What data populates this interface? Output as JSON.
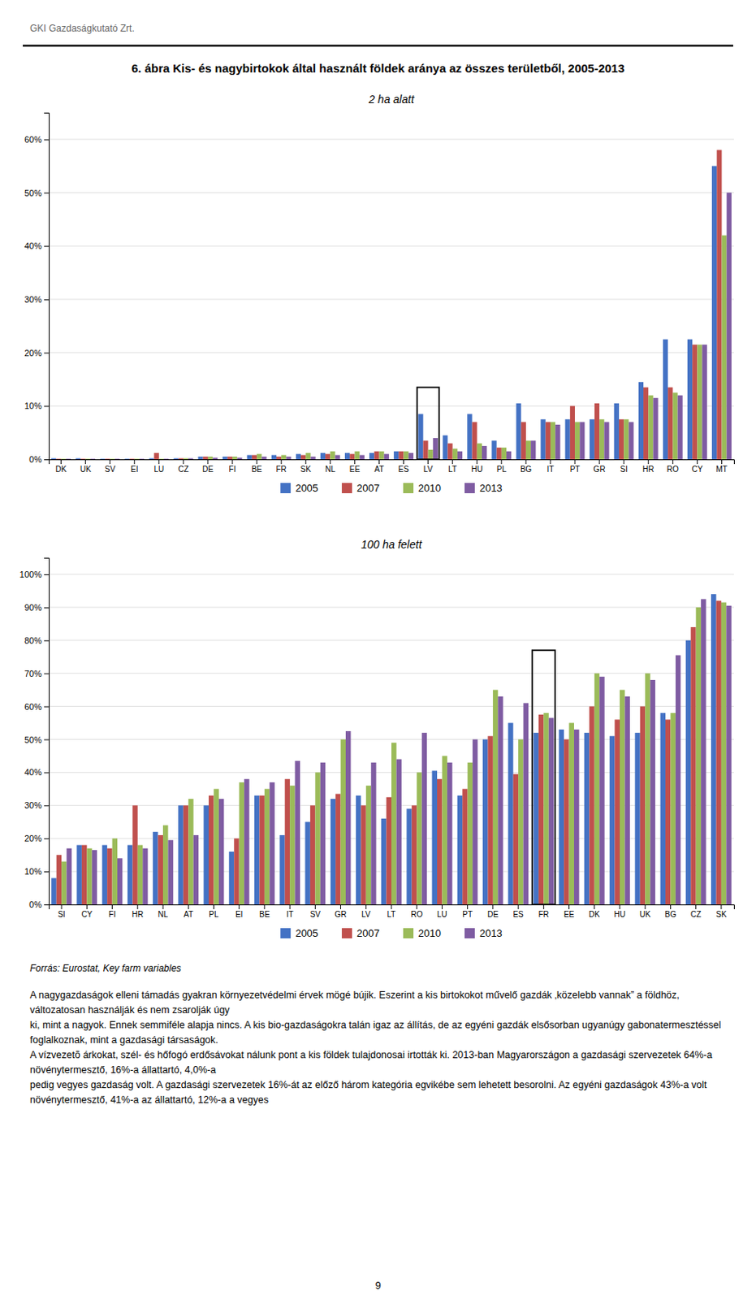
{
  "header_text": "GKI Gazdaságkutató Zrt.",
  "title": "6. ábra Kis- és nagybirtokok által használt földek aránya az összes területből, 2005-2013",
  "source_text": "Forrás: Eurostat, Key farm variables",
  "body_text": [
    "A nagygazdaságok elleni támadás gyakran környezetvédelmi érvek mögé bújik. Eszerint a kis birtokokot művelő gazdák ‚közelebb vannak” a földhöz, változatosan használják és nem zsarolják úgy",
    "ki, mint a nagyok. Ennek semmiféle alapja nincs. A kis bio-gazdaságokra talán igaz az állítás, de az egyéni gazdák elsősorban ugyanúgy gabonatermesztéssel foglalkoznak, mint a gazdasági társaságok.",
    "A vízvezetõ árkokat, szél- és hőfogó erdősávokat nálunk pont a kis földek tulajdonosai irtották ki. 2013-ban Magyarországon a gazdasági szervezetek 64%-a növénytermesztő, 16%-a állattartó, 4,0%-a",
    "pedig vegyes gazdaság volt. A gazdasági szervezetek 16%-át az előző három kategória egvikébe sem lehetett besorolni. Az egyéni gazdaságok 43%-a volt növénytermesztő, 41%-a az állattartó, 12%-a a vegyes"
  ],
  "page_number": "9",
  "chart_data": [
    {
      "type": "bar",
      "title": "2 ha alatt",
      "categories": [
        "DK",
        "UK",
        "SV",
        "EI",
        "LU",
        "CZ",
        "DE",
        "FI",
        "BE",
        "FR",
        "SK",
        "NL",
        "EE",
        "AT",
        "ES",
        "LV",
        "LT",
        "HU",
        "PL",
        "BG",
        "IT",
        "PT",
        "GR",
        "SI",
        "HR",
        "RO",
        "CY",
        "MT"
      ],
      "series": [
        {
          "name": "2005",
          "color": "#4472C4",
          "values": [
            0.2,
            0.2,
            0.1,
            0.1,
            0.2,
            0.2,
            0.5,
            0.5,
            0.8,
            0.8,
            1.0,
            1.2,
            1.2,
            1.2,
            1.5,
            8.5,
            4.5,
            8.5,
            3.5,
            10.5,
            7.5,
            7.5,
            7.5,
            10.5,
            14.5,
            22.5,
            22.5,
            55.0
          ]
        },
        {
          "name": "2007",
          "color": "#C0504D",
          "values": [
            0.1,
            0.1,
            0.1,
            0.1,
            1.2,
            0.2,
            0.5,
            0.5,
            0.8,
            0.5,
            0.8,
            1.0,
            1.0,
            1.5,
            1.5,
            3.5,
            3.0,
            7.0,
            2.2,
            7.0,
            7.0,
            10.0,
            10.5,
            7.5,
            13.5,
            13.5,
            21.5,
            58.0
          ]
        },
        {
          "name": "2010",
          "color": "#9BBB59",
          "values": [
            0.1,
            0.1,
            0.1,
            0.1,
            0.1,
            0.2,
            0.5,
            0.5,
            1.0,
            0.8,
            1.2,
            1.5,
            1.5,
            1.5,
            1.5,
            1.8,
            2.0,
            3.0,
            2.2,
            3.5,
            7.0,
            7.0,
            7.5,
            7.5,
            12.0,
            12.5,
            21.5,
            42.0
          ]
        },
        {
          "name": "2013",
          "color": "#7F5CA2",
          "values": [
            0.1,
            0.1,
            0.1,
            0.1,
            0.1,
            0.2,
            0.3,
            0.3,
            0.5,
            0.5,
            0.5,
            0.8,
            0.8,
            1.0,
            1.2,
            4.0,
            1.5,
            2.5,
            1.5,
            3.5,
            6.5,
            7.0,
            7.0,
            7.0,
            11.5,
            12.0,
            21.5,
            50.0
          ]
        }
      ],
      "ylim": [
        0,
        65
      ],
      "yticks": [
        {
          "value": 0,
          "label": "0%"
        },
        {
          "value": 10,
          "label": "10%"
        },
        {
          "value": 20,
          "label": "20%"
        },
        {
          "value": 30,
          "label": "30%"
        },
        {
          "value": 40,
          "label": "40%"
        },
        {
          "value": 50,
          "label": "50%"
        },
        {
          "value": 60,
          "label": "60%"
        }
      ],
      "grid": true,
      "legend": "bottom",
      "highlight": {
        "category": "LV",
        "value": 13.5
      }
    },
    {
      "type": "bar",
      "title": "100 ha felett",
      "categories": [
        "SI",
        "CY",
        "FI",
        "HR",
        "NL",
        "AT",
        "PL",
        "EI",
        "BE",
        "IT",
        "SV",
        "GR",
        "LV",
        "LT",
        "RO",
        "LU",
        "PT",
        "DE",
        "ES",
        "FR",
        "EE",
        "DK",
        "HU",
        "UK",
        "BG",
        "CZ",
        "SK"
      ],
      "series": [
        {
          "name": "2005",
          "color": "#4472C4",
          "values": [
            8.0,
            18.0,
            18.0,
            18.0,
            22.0,
            30.0,
            30.0,
            16.0,
            33.0,
            21.0,
            25.0,
            32.0,
            33.0,
            26.0,
            29.0,
            40.5,
            33.0,
            50.0,
            55.0,
            52.0,
            53.0,
            52.0,
            51.0,
            52.0,
            58.0,
            80.0,
            94.0
          ]
        },
        {
          "name": "2007",
          "color": "#C0504D",
          "values": [
            15.0,
            18.0,
            17.0,
            30.0,
            21.0,
            30.0,
            33.0,
            20.0,
            33.0,
            38.0,
            30.0,
            33.5,
            30.0,
            32.5,
            30.0,
            38.0,
            35.0,
            51.0,
            39.5,
            57.5,
            50.0,
            60.0,
            56.0,
            60.0,
            56.0,
            84.0,
            92.0
          ]
        },
        {
          "name": "2010",
          "color": "#9BBB59",
          "values": [
            13.0,
            17.0,
            20.0,
            18.0,
            24.0,
            32.0,
            35.0,
            37.0,
            35.0,
            36.0,
            40.0,
            50.0,
            36.0,
            49.0,
            40.0,
            45.0,
            43.0,
            65.0,
            50.0,
            58.0,
            55.0,
            70.0,
            65.0,
            70.0,
            58.0,
            90.0,
            91.5
          ]
        },
        {
          "name": "2013",
          "color": "#7F5CA2",
          "values": [
            17.0,
            16.5,
            14.0,
            17.0,
            19.5,
            21.0,
            32.0,
            38.0,
            37.0,
            43.5,
            43.0,
            52.5,
            43.0,
            44.0,
            52.0,
            43.0,
            50.0,
            63.0,
            61.0,
            56.5,
            53.0,
            69.0,
            63.0,
            68.0,
            75.5,
            92.5,
            90.5
          ]
        }
      ],
      "ylim": [
        0,
        105
      ],
      "yticks": [
        {
          "value": 0,
          "label": "0%"
        },
        {
          "value": 10,
          "label": "10%"
        },
        {
          "value": 20,
          "label": "20%"
        },
        {
          "value": 30,
          "label": "30%"
        },
        {
          "value": 40,
          "label": "40%"
        },
        {
          "value": 50,
          "label": "50%"
        },
        {
          "value": 60,
          "label": "60%"
        },
        {
          "value": 70,
          "label": "70%"
        },
        {
          "value": 80,
          "label": "80%"
        },
        {
          "value": 90,
          "label": "90%"
        },
        {
          "value": 100,
          "label": "100%"
        }
      ],
      "grid": true,
      "legend": "bottom",
      "highlight": {
        "category": "FR",
        "value": 77
      }
    }
  ]
}
